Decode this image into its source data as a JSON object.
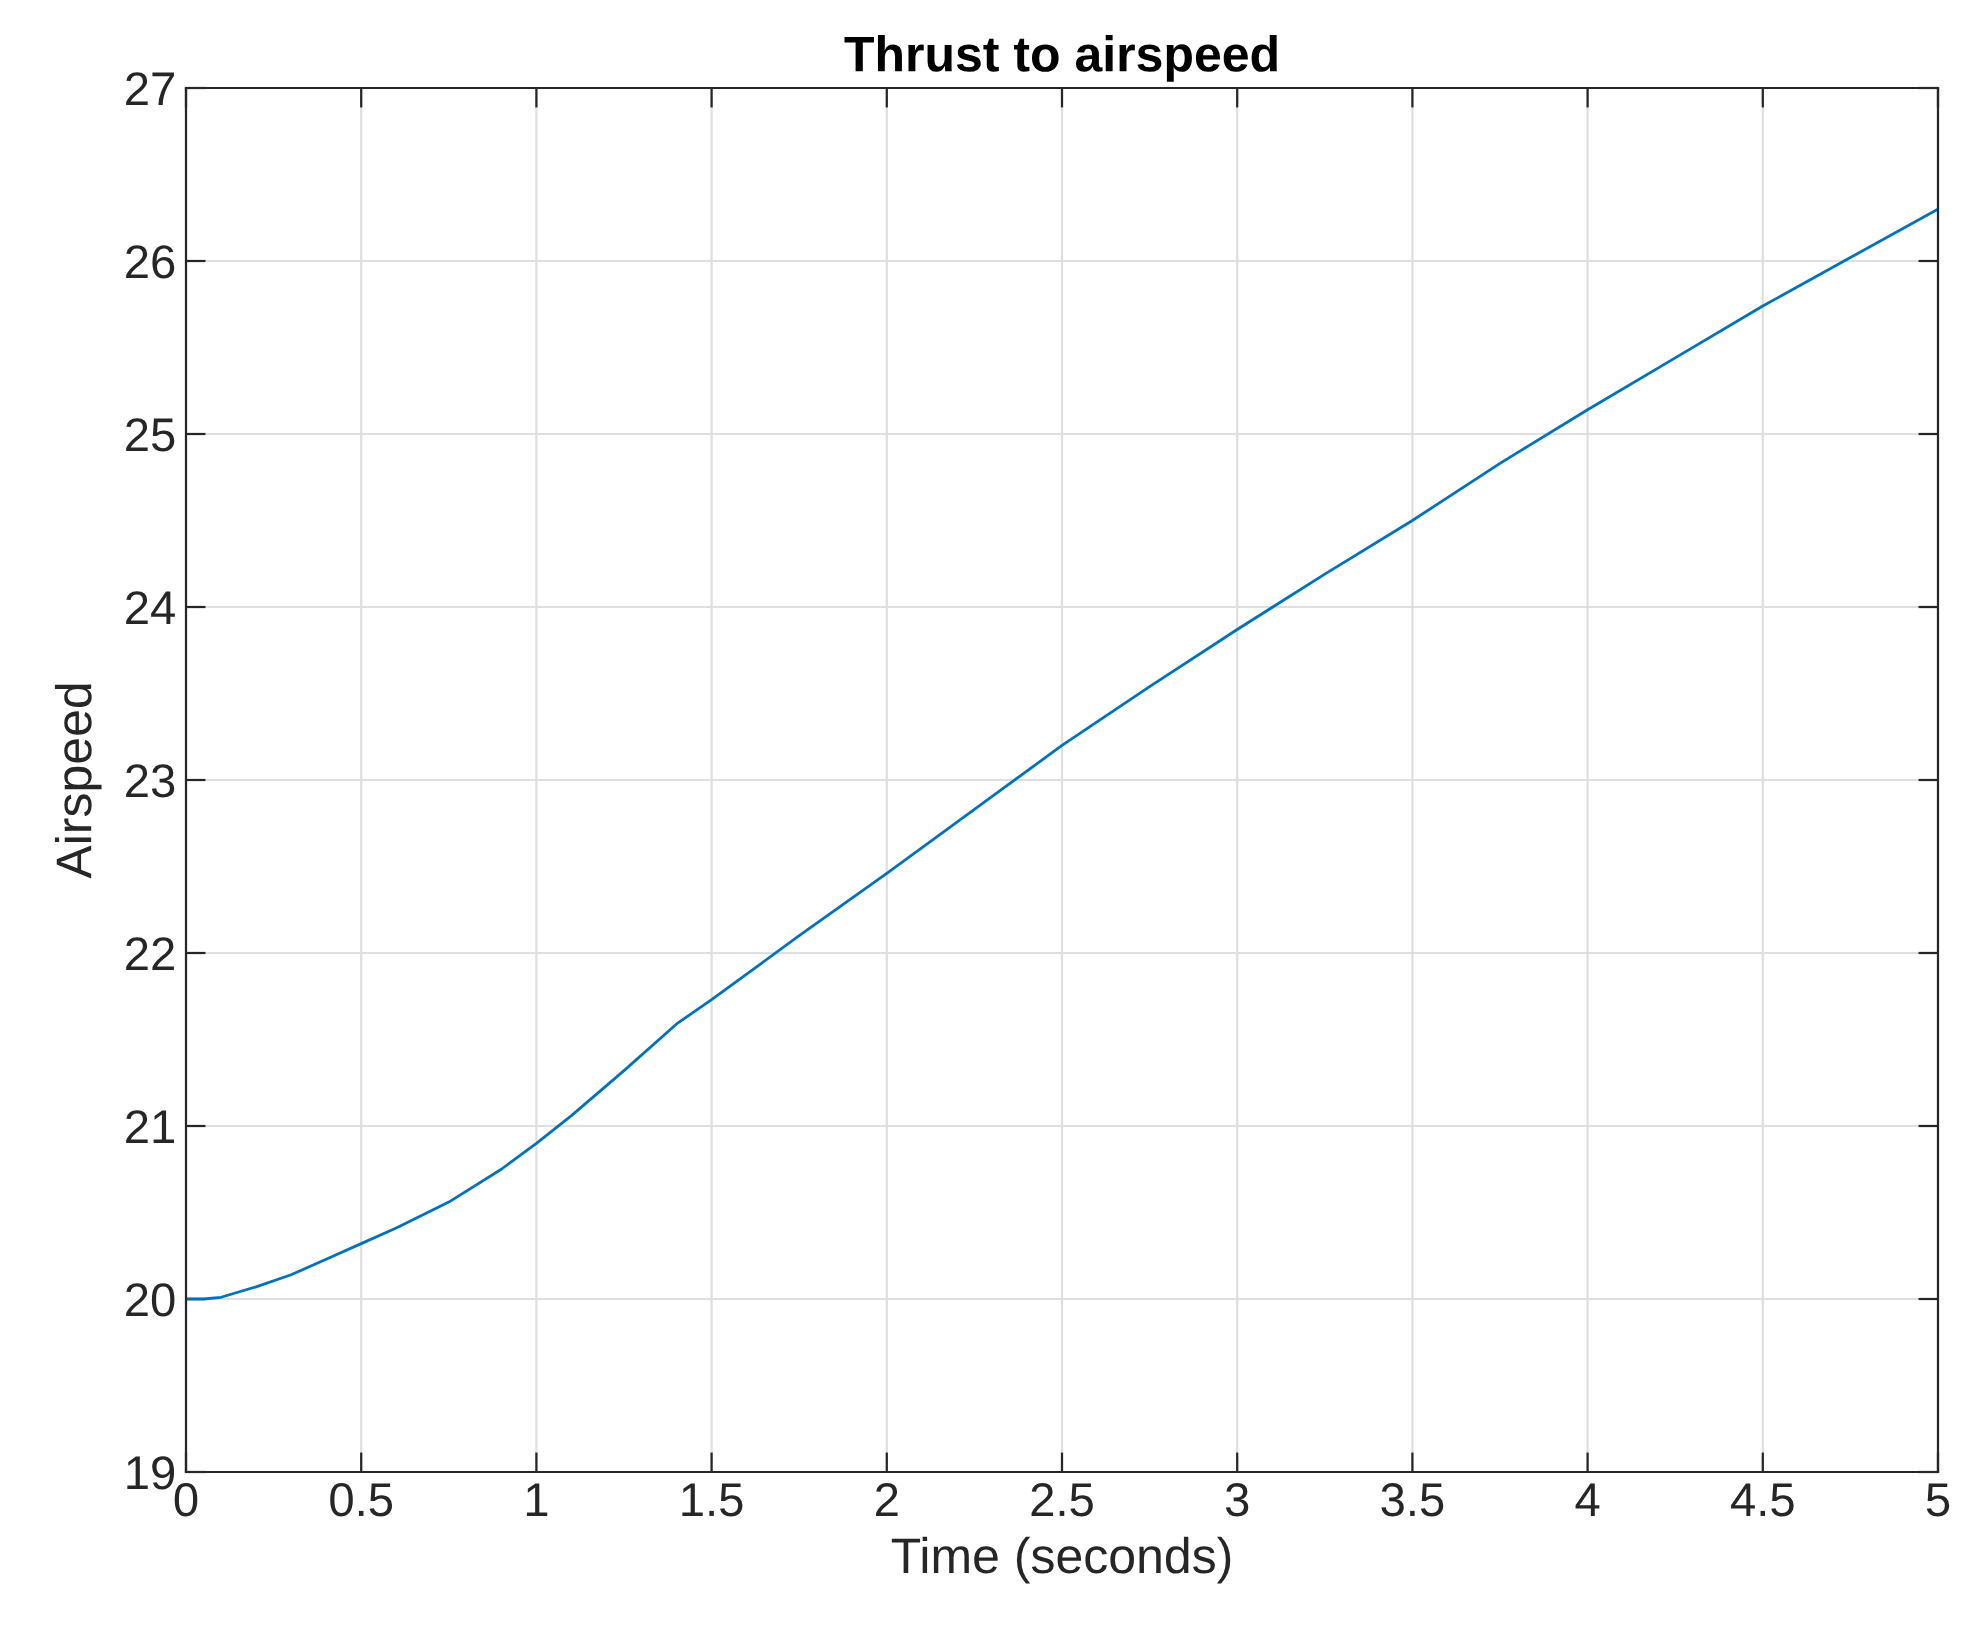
{
  "chart_data": {
    "type": "line",
    "title": "Thrust to airspeed",
    "xlabel": "Time (seconds)",
    "ylabel": "Airspeed",
    "x": [
      0,
      0.05,
      0.1,
      0.2,
      0.3,
      0.4,
      0.5,
      0.6,
      0.75,
      0.9,
      1.0,
      1.1,
      1.25,
      1.4,
      1.5,
      1.75,
      2.0,
      2.25,
      2.5,
      2.75,
      3.0,
      3.25,
      3.5,
      3.75,
      4.0,
      4.25,
      4.5,
      4.75,
      5.0
    ],
    "series": [
      {
        "color": "#0072bd",
        "values": [
          20.0,
          20.0,
          20.01,
          20.07,
          20.14,
          20.23,
          20.32,
          20.41,
          20.56,
          20.75,
          20.9,
          21.06,
          21.32,
          21.59,
          21.73,
          22.1,
          22.46,
          22.83,
          23.2,
          23.54,
          23.87,
          24.19,
          24.5,
          24.83,
          25.14,
          25.44,
          25.74,
          26.02,
          26.3
        ]
      }
    ],
    "xlim": [
      0,
      5
    ],
    "xticks": [
      0,
      0.5,
      1,
      1.5,
      2,
      2.5,
      3,
      3.5,
      4,
      4.5,
      5
    ],
    "ylim": [
      19,
      27
    ],
    "yticks": [
      19,
      20,
      21,
      22,
      23,
      24,
      25,
      26,
      27
    ],
    "grid": true,
    "marker": "none",
    "line_style": "solid"
  }
}
